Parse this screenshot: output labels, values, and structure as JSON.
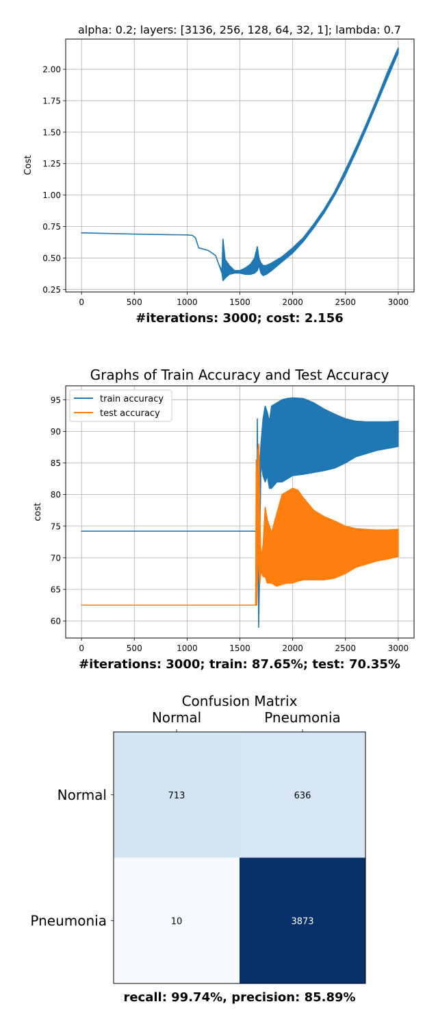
{
  "chart_data": [
    {
      "type": "line",
      "title": "alpha: 0.2; layers: [3136, 256, 128, 64, 32, 1]; lambda: 0.7",
      "xlabel": "#iterations: 3000; cost: 2.156",
      "ylabel": "Cost",
      "xlim": [
        -150,
        3150
      ],
      "ylim": [
        0.23,
        2.24
      ],
      "xticks": [
        0,
        500,
        1000,
        1500,
        2000,
        2500,
        3000
      ],
      "yticks": [
        0.25,
        0.5,
        0.75,
        1.0,
        1.25,
        1.5,
        1.75,
        2.0,
        2.25
      ],
      "ytick_labels": [
        "0.25",
        "0.50",
        "0.75",
        "1.00",
        "1.25",
        "1.50",
        "1.75",
        "2.00",
        ""
      ],
      "grid": true,
      "series": [
        {
          "color": "#1f77b4",
          "x": [
            0,
            500,
            1000,
            1050,
            1080,
            1110,
            1200,
            1270,
            1300,
            1330,
            1340,
            1360,
            1400,
            1450,
            1500,
            1550,
            1600,
            1640,
            1665,
            1680,
            1700,
            1720,
            1750,
            1800,
            1900,
            2000,
            2100,
            2200,
            2300,
            2400,
            2500,
            2600,
            2700,
            2800,
            2900,
            3000
          ],
          "lower": [
            0.7,
            0.69,
            0.683,
            0.68,
            0.66,
            0.58,
            0.56,
            0.52,
            0.45,
            0.38,
            0.32,
            0.34,
            0.37,
            0.38,
            0.38,
            0.37,
            0.37,
            0.38,
            0.4,
            0.44,
            0.38,
            0.36,
            0.37,
            0.4,
            0.47,
            0.54,
            0.63,
            0.74,
            0.86,
            1.0,
            1.16,
            1.34,
            1.53,
            1.73,
            1.93,
            2.13
          ],
          "upper": [
            0.7,
            0.69,
            0.683,
            0.68,
            0.66,
            0.58,
            0.56,
            0.52,
            0.45,
            0.4,
            0.65,
            0.49,
            0.44,
            0.4,
            0.4,
            0.42,
            0.45,
            0.5,
            0.59,
            0.5,
            0.46,
            0.44,
            0.44,
            0.46,
            0.51,
            0.58,
            0.66,
            0.77,
            0.89,
            1.03,
            1.2,
            1.38,
            1.57,
            1.77,
            1.98,
            2.17
          ]
        }
      ]
    },
    {
      "type": "line",
      "title": "Graphs of Train Accuracy and Test Accuracy",
      "xlabel": "#iterations: 3000; train: 87.65%; test: 70.35%",
      "ylabel": "cost",
      "xlim": [
        -150,
        3150
      ],
      "ylim": [
        57.3,
        97.2
      ],
      "xticks": [
        0,
        500,
        1000,
        1500,
        2000,
        2500,
        3000
      ],
      "yticks": [
        60,
        65,
        70,
        75,
        80,
        85,
        90,
        95
      ],
      "grid": true,
      "legend": "top-left",
      "series": [
        {
          "name": "train accuracy",
          "color": "#1f77b4",
          "x": [
            0,
            1660,
            1665,
            1670,
            1678,
            1685,
            1690,
            1700,
            1720,
            1740,
            1760,
            1780,
            1800,
            1850,
            1900,
            1950,
            2000,
            2100,
            2200,
            2300,
            2400,
            2500,
            2600,
            2700,
            2800,
            2900,
            3000
          ],
          "lower": [
            74.2,
            74.2,
            72.0,
            78.0,
            59.0,
            66.0,
            74.0,
            85.0,
            83.0,
            82.0,
            83.0,
            81.0,
            81.0,
            82.0,
            82.0,
            82.5,
            83.0,
            83.2,
            83.5,
            83.8,
            84.2,
            85.0,
            86.0,
            86.5,
            87.0,
            87.3,
            87.6
          ],
          "upper": [
            74.2,
            74.2,
            92.0,
            84.0,
            79.0,
            82.0,
            85.0,
            88.0,
            92.0,
            94.0,
            93.0,
            91.5,
            94.0,
            94.5,
            95.0,
            95.2,
            95.3,
            95.2,
            94.5,
            93.5,
            92.7,
            92.0,
            91.6,
            91.5,
            91.5,
            91.5,
            91.6
          ]
        },
        {
          "name": "test accuracy",
          "color": "#ff7f0e",
          "x": [
            0,
            1650,
            1655,
            1660,
            1670,
            1680,
            1690,
            1700,
            1720,
            1740,
            1760,
            1800,
            1850,
            1900,
            1950,
            2000,
            2050,
            2100,
            2200,
            2300,
            2400,
            2500,
            2600,
            2700,
            2800,
            2900,
            3000
          ],
          "lower": [
            62.5,
            62.5,
            62.5,
            62.5,
            72.0,
            68.0,
            66.0,
            68.0,
            67.0,
            67.0,
            66.0,
            66.0,
            65.5,
            65.8,
            66.0,
            66.0,
            66.3,
            66.5,
            66.5,
            66.5,
            66.8,
            67.5,
            68.5,
            69.0,
            69.5,
            69.8,
            70.2
          ],
          "upper": [
            62.5,
            62.5,
            85.5,
            75.0,
            87.0,
            88.0,
            76.0,
            70.0,
            72.0,
            78.0,
            76.0,
            74.0,
            77.0,
            80.0,
            80.5,
            81.0,
            80.7,
            79.5,
            77.5,
            76.5,
            75.8,
            75.0,
            74.6,
            74.5,
            74.4,
            74.4,
            74.5
          ]
        }
      ]
    },
    {
      "type": "heatmap",
      "title": "Confusion Matrix",
      "xlabel": "recall: 99.74%, precision: 85.89%",
      "x_categories": [
        "Normal",
        "Pneumonia"
      ],
      "y_categories": [
        "Normal",
        "Pneumonia"
      ],
      "values": [
        [
          713,
          636
        ],
        [
          10,
          3873
        ]
      ],
      "cell_labels": [
        [
          "713",
          "636"
        ],
        [
          "10",
          "3873"
        ]
      ],
      "colormap": "Blues",
      "colors": {
        "low": "#f7fbff",
        "mid_low": "#d4e4f4",
        "high": "#08306b"
      }
    }
  ]
}
